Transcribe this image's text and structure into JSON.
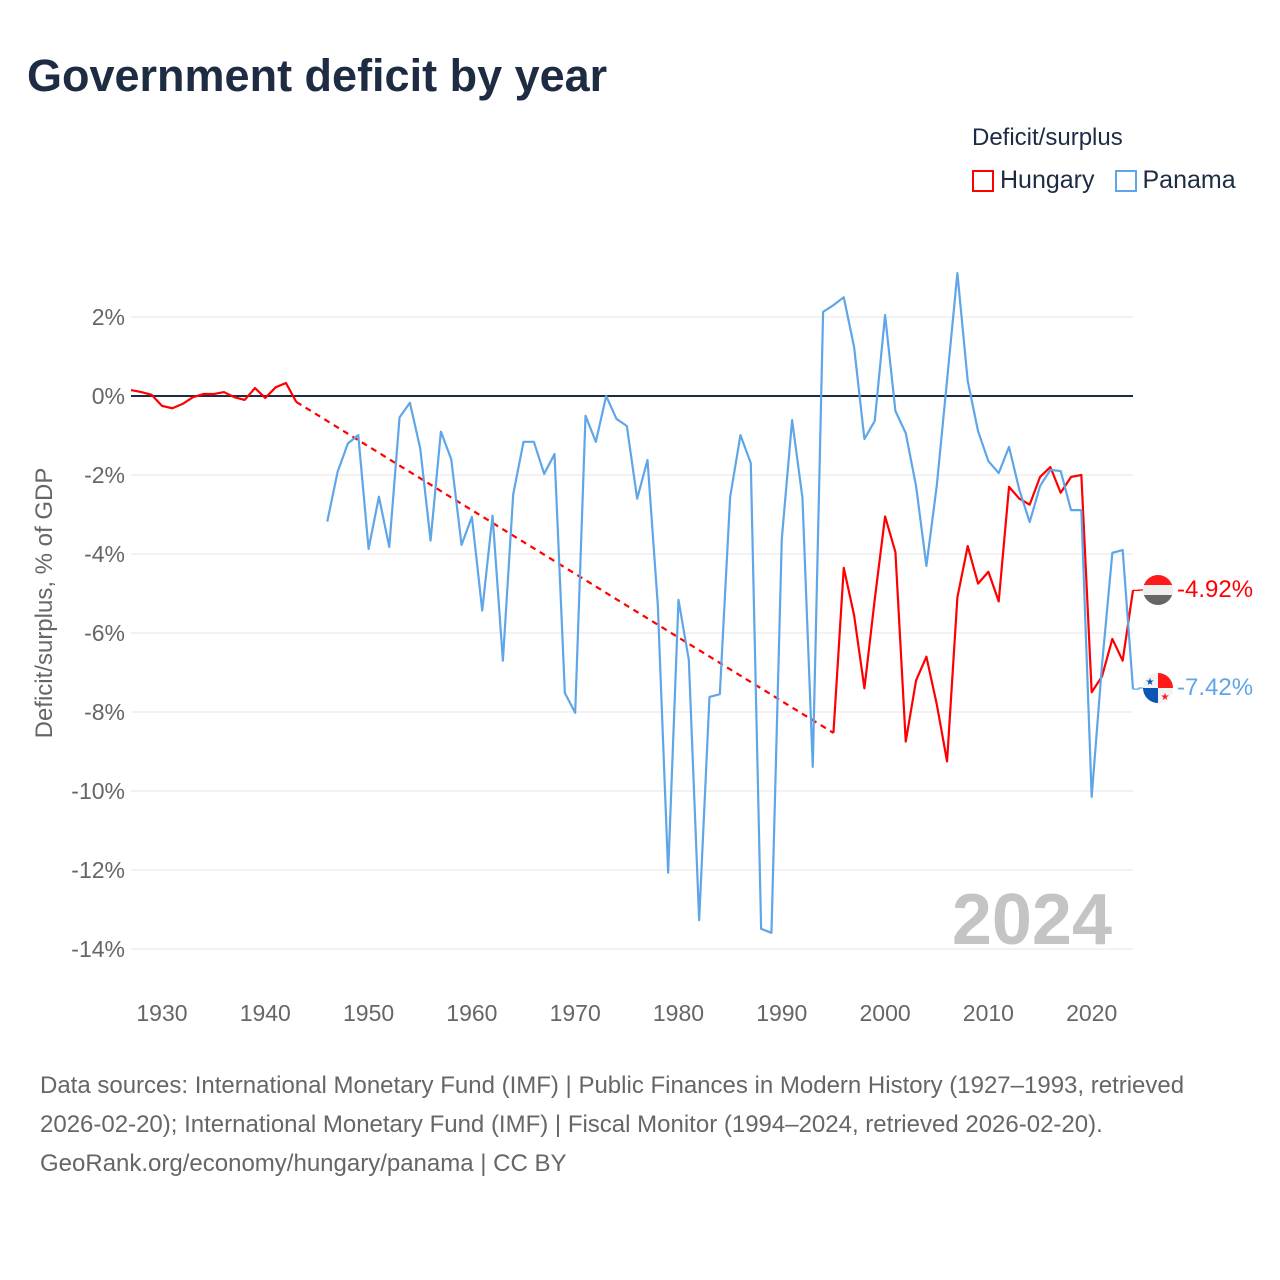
{
  "title": "Government deficit by year",
  "legend": {
    "title": "Deficit/surplus",
    "items": [
      {
        "name": "Hungary",
        "color": "#ff0000"
      },
      {
        "name": "Panama",
        "color": "#5ea6e8"
      }
    ]
  },
  "watermark_year": "2024",
  "end_labels": {
    "hungary": "-4.92%",
    "panama": "-7.42%"
  },
  "footer": {
    "sources": "Data sources: International Monetary Fund (IMF) | Public Finances in Modern History (1927–1993, retrieved 2026-02-20); International Monetary Fund (IMF) | Fiscal Monitor (1994–2024, retrieved 2026-02-20).",
    "credit": "GeoRank.org/economy/hungary/panama | CC BY"
  },
  "chart_data": {
    "type": "line",
    "title": "Government deficit by year",
    "xlabel": "",
    "ylabel": "Deficit/surplus, % of GDP",
    "xlim": [
      1927,
      2024
    ],
    "ylim": [
      -15,
      3.5
    ],
    "xticks": [
      1930,
      1940,
      1950,
      1960,
      1970,
      1980,
      1990,
      2000,
      2010,
      2020
    ],
    "yticks": [
      2,
      0,
      -2,
      -4,
      -6,
      -8,
      -10,
      -12,
      -14
    ],
    "ytick_labels": [
      "2%",
      "0%",
      "-2%",
      "-4%",
      "-6%",
      "-8%",
      "-10%",
      "-12%",
      "-14%"
    ],
    "legend_position": "top-right",
    "series": [
      {
        "name": "Hungary",
        "color": "#ff0000",
        "gap": [
          1943,
          1995
        ],
        "x": [
          1927,
          1928,
          1929,
          1930,
          1931,
          1932,
          1933,
          1934,
          1935,
          1936,
          1937,
          1938,
          1939,
          1940,
          1941,
          1942,
          1943,
          1995,
          1996,
          1997,
          1998,
          1999,
          2000,
          2001,
          2002,
          2003,
          2004,
          2005,
          2006,
          2007,
          2008,
          2009,
          2010,
          2011,
          2012,
          2013,
          2014,
          2015,
          2016,
          2017,
          2018,
          2019,
          2020,
          2021,
          2022,
          2023,
          2024
        ],
        "values": [
          0.15,
          0.1,
          0.03,
          -0.25,
          -0.31,
          -0.2,
          -0.03,
          0.05,
          0.05,
          0.1,
          -0.03,
          -0.1,
          0.2,
          -0.05,
          0.22,
          0.33,
          -0.15,
          -8.53,
          -4.35,
          -5.55,
          -7.4,
          -5.15,
          -3.05,
          -3.95,
          -8.75,
          -7.2,
          -6.6,
          -7.8,
          -9.25,
          -5.1,
          -3.8,
          -4.75,
          -4.45,
          -5.2,
          -2.3,
          -2.6,
          -2.75,
          -2.05,
          -1.8,
          -2.45,
          -2.05,
          -2.0,
          -7.5,
          -7.1,
          -6.15,
          -6.7,
          -4.92
        ]
      },
      {
        "name": "Panama",
        "color": "#5ea6e8",
        "x": [
          1946,
          1947,
          1948,
          1949,
          1950,
          1951,
          1952,
          1953,
          1954,
          1955,
          1956,
          1957,
          1958,
          1959,
          1960,
          1961,
          1962,
          1963,
          1964,
          1965,
          1966,
          1967,
          1968,
          1969,
          1970,
          1971,
          1972,
          1973,
          1974,
          1975,
          1976,
          1977,
          1978,
          1979,
          1980,
          1981,
          1982,
          1983,
          1984,
          1985,
          1986,
          1987,
          1988,
          1989,
          1990,
          1991,
          1992,
          1993,
          1994,
          1995,
          1996,
          1997,
          1998,
          1999,
          2000,
          2001,
          2002,
          2003,
          2004,
          2005,
          2006,
          2007,
          2008,
          2009,
          2010,
          2011,
          2012,
          2013,
          2014,
          2015,
          2016,
          2017,
          2018,
          2019,
          2020,
          2021,
          2022,
          2023,
          2024
        ],
        "values": [
          -3.18,
          -1.92,
          -1.2,
          -0.99,
          -3.87,
          -2.55,
          -3.82,
          -0.54,
          -0.17,
          -1.33,
          -3.66,
          -0.9,
          -1.6,
          -3.77,
          -3.06,
          -5.43,
          -3.03,
          -6.7,
          -2.49,
          -1.16,
          -1.16,
          -1.97,
          -1.47,
          -7.52,
          -8.02,
          -0.5,
          -1.16,
          0.0,
          -0.58,
          -0.76,
          -2.6,
          -1.62,
          -5.3,
          -12.07,
          -5.16,
          -6.68,
          -13.27,
          -7.62,
          -7.55,
          -2.56,
          -0.99,
          -1.7,
          -13.49,
          -13.59,
          -3.62,
          -0.61,
          -2.58,
          -9.39,
          2.13,
          2.3,
          2.5,
          1.24,
          -1.09,
          -0.63,
          2.05,
          -0.38,
          -0.94,
          -2.28,
          -4.3,
          -2.28,
          0.4,
          3.11,
          0.38,
          -0.89,
          -1.65,
          -1.95,
          -1.29,
          -2.38,
          -3.19,
          -2.28,
          -1.87,
          -1.9,
          -2.89,
          -2.89,
          -10.15,
          -6.81,
          -3.97,
          -3.9,
          -7.42
        ]
      }
    ]
  }
}
